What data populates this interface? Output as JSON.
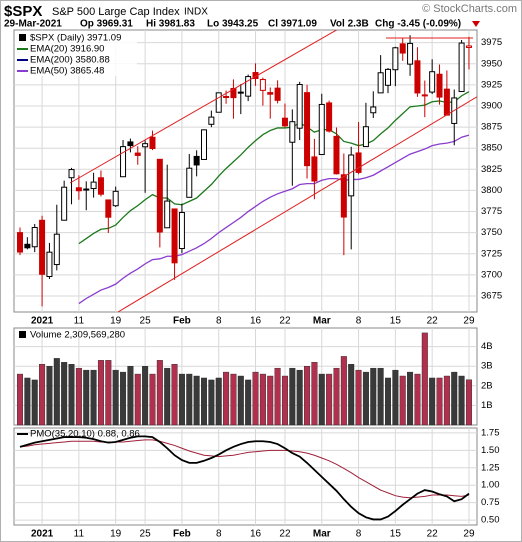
{
  "header": {
    "symbol": "$SPX",
    "name": "S&P 500 Large Cap Index",
    "exchange": "INDX",
    "copyright": "© StockCharts.com",
    "date": "29-Mar-2021",
    "stats": [
      "Op 3969.31",
      "Hi 3981.83",
      "Lo 3943.25",
      "Cl 3971.09",
      "Vol 2.3B",
      "Chg -3.45 (-0.09%)"
    ]
  },
  "chart_data": [
    {
      "type": "candlestick",
      "price_label": "$SPX (Daily) 3971.09",
      "up_color": "#000000",
      "down_color": "#cc0000",
      "categories": [
        null,
        null,
        null,
        "2021",
        null,
        null,
        null,
        null,
        "11",
        null,
        null,
        null,
        null,
        "19",
        null,
        null,
        null,
        "25",
        null,
        null,
        null,
        null,
        "Feb",
        null,
        null,
        null,
        null,
        "8",
        null,
        null,
        null,
        null,
        "16",
        null,
        null,
        null,
        "22",
        null,
        null,
        null,
        null,
        "Mar",
        null,
        null,
        null,
        null,
        "8",
        null,
        null,
        null,
        null,
        "15",
        null,
        null,
        null,
        null,
        "22",
        null,
        null,
        null,
        null,
        "29"
      ],
      "open": [
        3750.01,
        3736.19,
        3733.27,
        3764.61,
        3698.02,
        3712.2,
        3764.71,
        3815.05,
        3803.14,
        3801.62,
        3802.23,
        3814.98,
        3788.73,
        3781.88,
        3816.22,
        3857.46,
        3844.24,
        3851.68,
        3862.96,
        3836.83,
        3755.75,
        3778.05,
        3731.17,
        3791.84,
        3840.27,
        3836.66,
        3878.3,
        3892.59,
        3910.49,
        3920.78,
        3916.4,
        3911.65,
        3939.61,
        3918.5,
        3915.86,
        3921.16,
        3885.55,
        3857.07,
        3873.71,
        3915.8,
        3839.66,
        3842.51,
        3903.64,
        3863.99,
        3818.53,
        3793.58,
        3844.39,
        3851.93,
        3891.99,
        3915.54,
        3924.52,
        3942.96,
        3973.59,
        3949.57,
        3953.5,
        3913.14,
        3916.48,
        3937.6,
        3919.93,
        3879.34,
        3917.12,
        3969.31
      ],
      "high": [
        3756.12,
        3744.63,
        3760.2,
        3769.99,
        3737.83,
        3783.04,
        3811.55,
        3826.69,
        3817.86,
        3810.78,
        3820.96,
        3823.6,
        3788.73,
        3804.53,
        3859.75,
        3861.45,
        3852.31,
        3859.23,
        3870.9,
        3836.83,
        3830.5,
        3778.05,
        3784.32,
        3843.09,
        3847.51,
        3872.42,
        3894.56,
        3915.77,
        3918.35,
        3931.5,
        3925.99,
        3937.23,
        3950.43,
        3933.61,
        3921.98,
        3930.41,
        3902.92,
        3895.98,
        3928.65,
        3925.02,
        3861.08,
        3914.5,
        3906.41,
        3874.47,
        3843.67,
        3851.69,
        3881.06,
        3903.76,
        3917.35,
        3960.27,
        3944.99,
        3970.08,
        3981.04,
        3983.87,
        3969.62,
        3930.12,
        3955.31,
        3949.13,
        3942.08,
        3919.54,
        3978.19,
        3981.83
      ],
      "low": [
        3723.31,
        3730.21,
        3726.88,
        3662.71,
        3695.07,
        3705.34,
        3764.71,
        3783.6,
        3789.02,
        3776.51,
        3791.5,
        3792.86,
        3749.62,
        3780.37,
        3816.22,
        3845.05,
        3830.41,
        3797.16,
        3847.78,
        3732.48,
        3755.75,
        3694.12,
        3725.62,
        3791.84,
        3816.68,
        3836.66,
        3874.93,
        3892.59,
        3902.64,
        3884.94,
        3890.39,
        3905.78,
        3923.85,
        3900.43,
        3885.03,
        3903.07,
        3874.71,
        3805.59,
        3859.6,
        3814.04,
        3789.54,
        3842.51,
        3868.57,
        3818.86,
        3723.34,
        3730.19,
        3819.25,
        3851.93,
        3885.73,
        3915.54,
        3915.21,
        3923.54,
        3953.44,
        3935.74,
        3910.86,
        3886.75,
        3914.16,
        3901.57,
        3889.07,
        3853.5,
        3917.12,
        3943.25
      ],
      "close": [
        3727.04,
        3732.04,
        3756.07,
        3700.65,
        3726.86,
        3748.14,
        3803.79,
        3824.68,
        3799.61,
        3801.19,
        3809.84,
        3795.54,
        3768.25,
        3798.91,
        3851.85,
        3853.07,
        3841.47,
        3855.36,
        3849.62,
        3750.77,
        3787.38,
        3714.24,
        3773.86,
        3826.31,
        3830.17,
        3871.74,
        3886.83,
        3915.59,
        3911.23,
        3909.88,
        3916.38,
        3934.83,
        3932.59,
        3931.33,
        3913.97,
        3906.71,
        3876.5,
        3881.37,
        3925.43,
        3829.34,
        3811.15,
        3901.82,
        3870.29,
        3819.72,
        3768.47,
        3841.94,
        3821.35,
        3875.44,
        3898.81,
        3939.34,
        3943.34,
        3968.94,
        3962.71,
        3974.12,
        3915.46,
        3913.1,
        3940.59,
        3910.52,
        3889.14,
        3909.52,
        3974.54,
        3971.09
      ],
      "series": [
        {
          "name": "EMA(20) 3916.90",
          "color": "#1b7a1b",
          "values": [
            null,
            null,
            null,
            null,
            null,
            null,
            null,
            null,
            3737,
            3743,
            3749,
            3754,
            3755,
            3759,
            3768,
            3776,
            3782,
            3789,
            3795,
            3791,
            3791,
            3784,
            3783,
            3787,
            3791,
            3799,
            3807,
            3817,
            3826,
            3834,
            3842,
            3851,
            3859,
            3866,
            3871,
            3874,
            3874,
            3875,
            3880,
            3875,
            3869,
            3872,
            3872,
            3867,
            3858,
            3856,
            3853,
            3855,
            3859,
            3867,
            3874,
            3883,
            3891,
            3899,
            3900,
            3901,
            3905,
            3906,
            3904,
            3905,
            3912,
            3916.9
          ]
        },
        {
          "name": "EMA(200) 3580.88",
          "color": "#000080",
          "values": [
            null,
            null,
            null,
            null,
            null,
            null,
            null,
            null,
            null,
            null,
            null,
            null,
            null,
            null,
            null,
            null,
            null,
            null,
            null,
            null,
            null,
            null,
            null,
            null,
            null,
            null,
            null,
            null,
            null,
            null,
            null,
            null,
            null,
            null,
            null,
            null,
            null,
            null,
            null,
            null,
            null,
            null,
            null,
            null,
            null,
            null,
            null,
            null,
            null,
            null,
            null,
            null,
            null,
            null,
            null,
            null,
            null,
            null,
            null,
            null,
            null,
            null
          ]
        },
        {
          "name": "EMA(50) 3865.48",
          "color": "#8a3ccf",
          "values": [
            null,
            null,
            null,
            null,
            null,
            null,
            null,
            null,
            3666,
            3672,
            3677,
            3682,
            3685,
            3689,
            3696,
            3702,
            3707,
            3713,
            3718,
            3719,
            3722,
            3722,
            3724,
            3728,
            3732,
            3737,
            3743,
            3750,
            3756,
            3762,
            3768,
            3775,
            3781,
            3787,
            3792,
            3796,
            3799,
            3802,
            3807,
            3808,
            3808,
            3812,
            3814,
            3814,
            3812,
            3813,
            3813,
            3815,
            3818,
            3823,
            3828,
            3833,
            3838,
            3843,
            3846,
            3849,
            3853,
            3855,
            3856,
            3858,
            3863,
            3865.48
          ]
        }
      ],
      "ylim": [
        3656,
        3990
      ],
      "yticks": [
        3675,
        3700,
        3725,
        3750,
        3775,
        3800,
        3825,
        3850,
        3875,
        3900,
        3925,
        3950,
        3975
      ],
      "grid": true
    },
    {
      "type": "bar",
      "series_name": "Volume 2,309,569,280",
      "values": [
        2.6,
        2.4,
        2.3,
        3.1,
        3.0,
        3.4,
        3.2,
        3.1,
        2.9,
        2.8,
        2.8,
        3.3,
        3.3,
        2.8,
        2.7,
        3.0,
        2.6,
        3.0,
        2.6,
        3.3,
        2.9,
        3.1,
        2.6,
        2.6,
        2.5,
        2.4,
        2.3,
        2.4,
        2.7,
        2.6,
        2.5,
        2.3,
        2.7,
        2.6,
        2.5,
        2.9,
        2.5,
        2.9,
        2.8,
        3.0,
        3.2,
        2.6,
        2.6,
        2.9,
        3.5,
        3.1,
        2.8,
        2.7,
        2.9,
        2.9,
        2.4,
        2.8,
        2.5,
        2.7,
        2.6,
        4.7,
        2.4,
        2.4,
        2.5,
        2.7,
        2.5,
        2.30956928
      ],
      "ylim": [
        0,
        4.95
      ],
      "yticks": [
        {
          "value": 1,
          "label": "1B"
        },
        {
          "value": 2,
          "label": "2B"
        },
        {
          "value": 3,
          "label": "3B"
        },
        {
          "value": 4,
          "label": "4B"
        }
      ],
      "grid": true
    },
    {
      "type": "line",
      "categories": [
        null,
        null,
        null,
        "2021",
        null,
        null,
        null,
        null,
        "11",
        null,
        null,
        null,
        null,
        "19",
        null,
        null,
        null,
        "25",
        null,
        null,
        null,
        null,
        "Feb",
        null,
        null,
        null,
        null,
        "8",
        null,
        null,
        null,
        null,
        "16",
        null,
        null,
        null,
        "22",
        null,
        null,
        null,
        null,
        "Mar",
        null,
        null,
        null,
        null,
        "8",
        null,
        null,
        null,
        null,
        "15",
        null,
        null,
        null,
        null,
        "22",
        null,
        null,
        null,
        null,
        "29"
      ],
      "series": [
        {
          "name": "PMO(35,20,10) 0.88, 0.86",
          "color": "#000000",
          "values": [
            1.55,
            1.58,
            1.61,
            1.63,
            1.65,
            1.67,
            1.69,
            1.69,
            1.69,
            1.68,
            1.66,
            1.63,
            1.61,
            1.62,
            1.65,
            1.68,
            1.7,
            1.7,
            1.69,
            1.62,
            1.53,
            1.43,
            1.36,
            1.32,
            1.32,
            1.35,
            1.39,
            1.44,
            1.5,
            1.55,
            1.59,
            1.62,
            1.63,
            1.63,
            1.62,
            1.59,
            1.53,
            1.46,
            1.41,
            1.32,
            1.22,
            1.12,
            1.02,
            0.92,
            0.8,
            0.69,
            0.6,
            0.54,
            0.51,
            0.51,
            0.55,
            0.63,
            0.72,
            0.8,
            0.88,
            0.93,
            0.91,
            0.87,
            0.84,
            0.77,
            0.8,
            0.88
          ]
        }
      ],
      "signal": {
        "color": "#a0203a",
        "values": [
          1.55,
          1.56,
          1.58,
          1.59,
          1.6,
          1.61,
          1.62,
          1.63,
          1.63,
          1.63,
          1.63,
          1.62,
          1.62,
          1.62,
          1.62,
          1.63,
          1.64,
          1.65,
          1.65,
          1.63,
          1.6,
          1.57,
          1.53,
          1.49,
          1.46,
          1.43,
          1.42,
          1.41,
          1.42,
          1.43,
          1.45,
          1.47,
          1.48,
          1.49,
          1.5,
          1.5,
          1.5,
          1.49,
          1.48,
          1.46,
          1.43,
          1.39,
          1.35,
          1.3,
          1.24,
          1.18,
          1.11,
          1.05,
          0.99,
          0.93,
          0.89,
          0.85,
          0.83,
          0.82,
          0.83,
          0.84,
          0.86,
          0.86,
          0.86,
          0.85,
          0.84,
          0.86
        ]
      },
      "ylim": [
        0.43,
        1.82
      ],
      "yticks": [
        {
          "value": 0.5,
          "label": "0.50"
        },
        0.75,
        {
          "value": 1,
          "label": "1.00"
        },
        1.25,
        {
          "value": 1.5,
          "label": "1.50"
        },
        1.75
      ],
      "grid": true
    }
  ]
}
